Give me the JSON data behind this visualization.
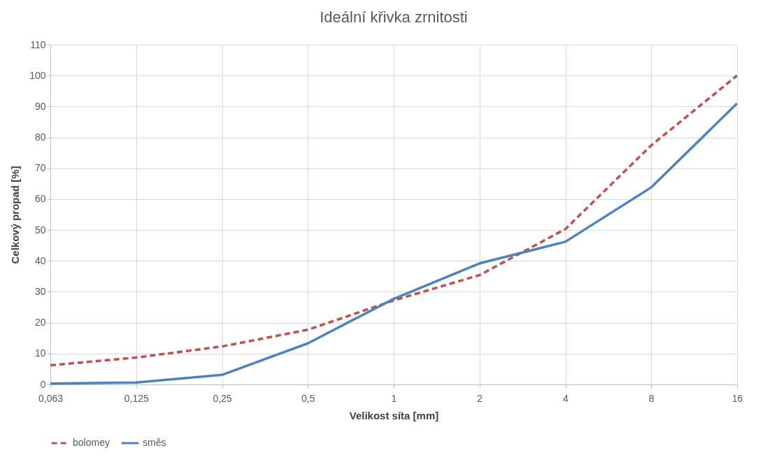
{
  "chart_data": {
    "type": "line",
    "title": "Ideální křivka zrnitosti",
    "xlabel": "Velikost síta [mm]",
    "ylabel": "Celkový propad [%]",
    "categories": [
      "0,063",
      "0,125",
      "0,25",
      "0,5",
      "1",
      "2",
      "4",
      "8",
      "16"
    ],
    "series": [
      {
        "name": "bolomey",
        "color": "#c0504d",
        "line_style": "dashed",
        "values": [
          6.2,
          8.7,
          12.3,
          17.7,
          27.2,
          35.4,
          50.3,
          77.4,
          100
        ]
      },
      {
        "name": "směs",
        "color": "#4f81bd",
        "line_style": "solid",
        "values": [
          0.3,
          0.6,
          3.1,
          13.3,
          27.7,
          39.2,
          46.2,
          63.8,
          91
        ]
      }
    ],
    "ylim": [
      0,
      110
    ],
    "yticks": [
      0,
      10,
      20,
      30,
      40,
      50,
      60,
      70,
      80,
      90,
      100,
      110
    ],
    "grid": true,
    "legend": "bottom"
  }
}
